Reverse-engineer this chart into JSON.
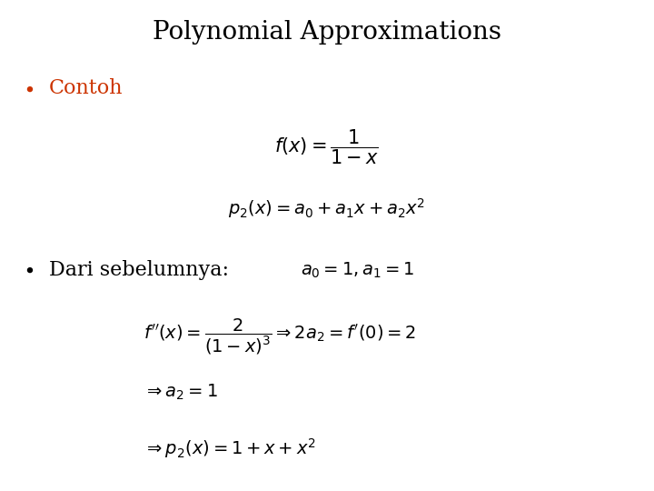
{
  "title": "Polynomial Approximations",
  "title_fontsize": 20,
  "title_color": "#000000",
  "background_color": "#ffffff",
  "bullet1_text": "Contoh",
  "bullet1_color": "#cc3300",
  "bullet2_text": "Dari sebelumnya:",
  "bullet2_color": "#000000",
  "formula1": "$f(x) = \\dfrac{1}{1-x}$",
  "formula2": "$p_2(x) = a_0 + a_1 x + a_2 x^2$",
  "formula3": "$a_0 = 1, a_1 = 1$",
  "formula4": "$f''(x) = \\dfrac{2}{(1-x)^3} \\Rightarrow 2a_2 = f'(0) = 2$",
  "formula5": "$\\Rightarrow a_2 = 1$",
  "formula6": "$\\Rightarrow p_2(x) = 1 + x + x^2$",
  "math_fontsize": 14,
  "text_fontsize": 16,
  "bullet_fontsize": 16
}
